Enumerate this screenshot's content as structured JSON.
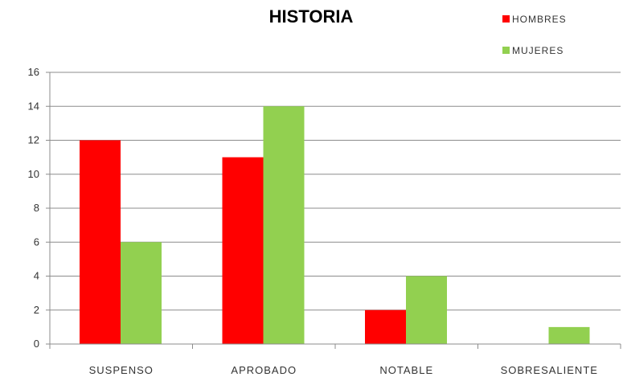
{
  "chart_data": {
    "type": "bar",
    "title": "HISTORIA",
    "categories": [
      "SUSPENSO",
      "APROBADO",
      "NOTABLE",
      "SOBRESALIENTE"
    ],
    "series": [
      {
        "name": "HOMBRES",
        "values": [
          12,
          11,
          2,
          0
        ],
        "color": "#ff0000"
      },
      {
        "name": "MUJERES",
        "values": [
          6,
          14,
          4,
          1
        ],
        "color": "#92d050"
      }
    ],
    "ylim": [
      0,
      16
    ],
    "yticks": [
      "0",
      "2",
      "4",
      "6",
      "8",
      "10",
      "12",
      "14",
      "16"
    ],
    "xlabel": "",
    "ylabel": "",
    "grid": true,
    "legend_position": "top-right"
  }
}
